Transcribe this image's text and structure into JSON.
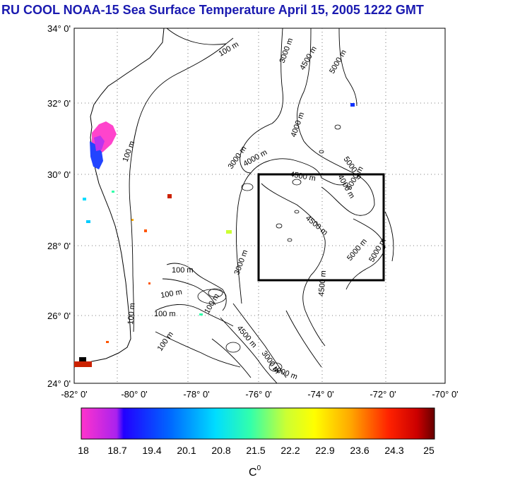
{
  "title": "RU COOL  NOAA-15 Sea Surface Temperature April 15, 2005 1222 GMT",
  "map": {
    "lat_ticks": [
      "34° 0'",
      "32° 0'",
      "30° 0'",
      "28° 0'",
      "26° 0'",
      "24° 0'"
    ],
    "lon_ticks": [
      "-82° 0'",
      "-80° 0'",
      "-78° 0'",
      "-76° 0'",
      "-74° 0'",
      "-72° 0'",
      "-70° 0'"
    ],
    "contour_labels": [
      "100 m",
      "3000 m",
      "4500 m",
      "5000 m",
      "100 m",
      "4000 m",
      "3000 m",
      "4000 m",
      "4500 m",
      "5000 m",
      "4000 m",
      "4500 m",
      "5000 m",
      "5000 m",
      "4500 m",
      "5000 m",
      "100 m",
      "100 m",
      "100 m",
      "100 m",
      "100 m",
      "100 m",
      "3000 m",
      "4500 m",
      "3000 m",
      "4000 m"
    ],
    "study_box": {
      "lon_min": -76,
      "lon_max": -72,
      "lat_min": 27,
      "lat_max": 30
    }
  },
  "colorbar": {
    "labels": [
      "18",
      "18.7",
      "19.4",
      "20.1",
      "20.8",
      "21.5",
      "22.2",
      "22.9",
      "23.6",
      "24.3",
      "25"
    ],
    "unit": "C",
    "unit_sup": "0",
    "stops": [
      "#ff33cc",
      "#2200ff",
      "#0066ff",
      "#00ddff",
      "#33ffaa",
      "#ccff33",
      "#ffff00",
      "#ffaa00",
      "#ff4400",
      "#dd0000",
      "#660000"
    ]
  }
}
